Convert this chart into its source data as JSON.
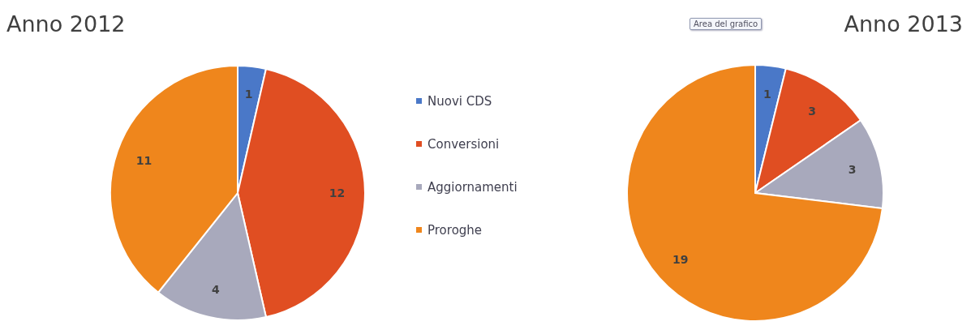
{
  "chart_data": [
    {
      "type": "pie",
      "title": "Anno 2012",
      "categories": [
        "Nuovi CDS",
        "Conversioni",
        "Aggiornamenti",
        "Proroghe"
      ],
      "values": [
        1,
        12,
        4,
        11
      ],
      "colors": [
        "#4a78c8",
        "#e04e22",
        "#a8a9bc",
        "#ef861c"
      ],
      "data_labels": true,
      "legend": "right"
    },
    {
      "type": "pie",
      "title": "Anno 2013",
      "categories": [
        null,
        null,
        null,
        null
      ],
      "values": [
        1,
        3,
        3,
        19
      ],
      "colors": [
        "#4a78c8",
        "#e04e22",
        "#a8a9bc",
        "#ef861c"
      ],
      "data_labels": true,
      "legend": false,
      "annotations": [
        "Area del grafico"
      ]
    }
  ]
}
